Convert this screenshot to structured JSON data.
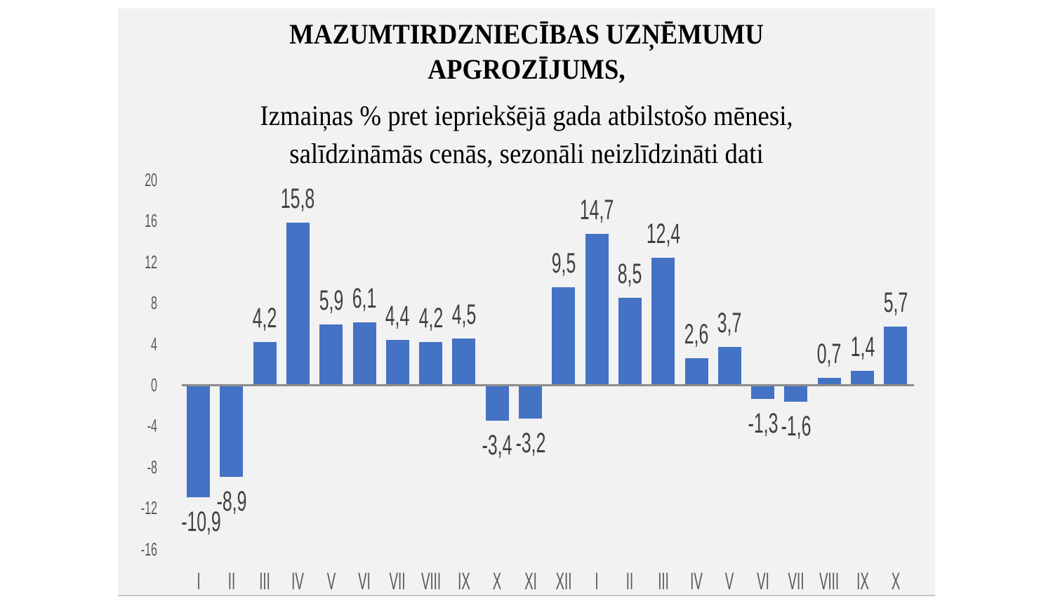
{
  "chart_data": {
    "type": "bar",
    "title": "MAZUMTIRDZNIECĪBAS UZŅĒMUMU APGROZĪJUMS,",
    "title_lines": [
      "MAZUMTIRDZNIECĪBAS UZŅĒMUMU",
      "APGROZĪJUMS,"
    ],
    "subtitle": "Izmaiņas % pret iepriekšējā gada atbilstošo mēnesi, salīdzināmās cenās, sezonāli neizlīdzināti dati",
    "subtitle_lines": [
      "Izmaiņas % pret iepriekšējā gada atbilstošo mēnesi,",
      "salīdzināmās cenās, sezonāli neizlīdzināti dati"
    ],
    "xlabel": "",
    "ylabel": "",
    "categories": [
      "I",
      "II",
      "III",
      "IV",
      "V",
      "VI",
      "VII",
      "VIII",
      "IX",
      "X",
      "XI",
      "XII",
      "I",
      "II",
      "III",
      "IV",
      "V",
      "VI",
      "VII",
      "VIII",
      "IX",
      "X"
    ],
    "values": [
      -10.9,
      -8.9,
      4.2,
      15.8,
      5.9,
      6.1,
      4.4,
      4.2,
      4.5,
      -3.4,
      -3.2,
      9.5,
      14.7,
      8.5,
      12.4,
      2.6,
      3.7,
      -1.3,
      -1.6,
      0.7,
      1.4,
      5.7
    ],
    "value_labels": [
      "-10,9",
      "-8,9",
      "4,2",
      "15,8",
      "5,9",
      "6,1",
      "4,4",
      "4,2",
      "4,5",
      "-3,4",
      "-3,2",
      "9,5",
      "14,7",
      "8,5",
      "12,4",
      "2,6",
      "3,7",
      "-1,3",
      "-1,6",
      "0,7",
      "1,4",
      "5,7"
    ],
    "yticks": [
      "20",
      "16",
      "12",
      "8",
      "4",
      "0",
      "-4",
      "-8",
      "-12",
      "-16"
    ],
    "ytick_values": [
      20,
      16,
      12,
      8,
      4,
      0,
      -4,
      -8,
      -12,
      -16
    ],
    "ylim": [
      -16,
      20
    ],
    "grid": false,
    "legend": null,
    "colors": {
      "bar": "#4472c4",
      "baseline": "#8c8c8c",
      "background": "#f2f2f2"
    }
  }
}
